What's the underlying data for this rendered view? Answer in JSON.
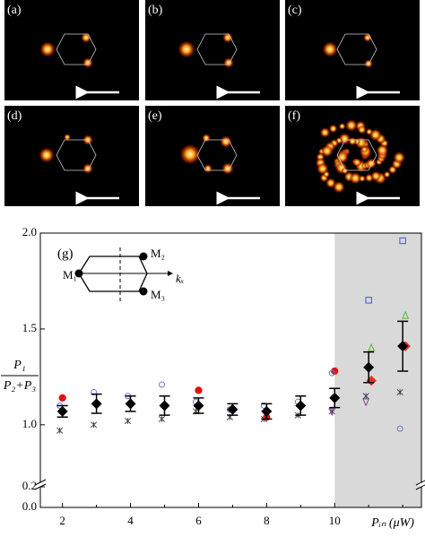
{
  "panels": [
    {
      "label": "(a)"
    },
    {
      "label": "(b)"
    },
    {
      "label": "(c)"
    },
    {
      "label": "(d)"
    },
    {
      "label": "(e)"
    },
    {
      "label": "(f)"
    }
  ],
  "chart_data": {
    "type": "scatter",
    "label": "(g)",
    "y_label": {
      "numerator": "P₁",
      "denominator": "P₂+P₃"
    },
    "x_label": "Pᵢₙ (μW)",
    "inset": {
      "labels": [
        "M₁",
        "M₂",
        "M₃",
        "kₓ"
      ]
    },
    "x": [
      2,
      3,
      4,
      5,
      6,
      7,
      8,
      9,
      10,
      11,
      12
    ],
    "xlim": [
      1.35,
      12.55
    ],
    "xticks": [
      2,
      4,
      6,
      8,
      10
    ],
    "ylim": [
      0,
      2.0
    ],
    "y_break": [
      0.2,
      0.7
    ],
    "yticks": [
      {
        "value": 0,
        "label": "0.0"
      },
      0.2,
      {
        "value": 1,
        "label": "1.0"
      },
      1.5,
      {
        "value": 2,
        "label": "2.0"
      }
    ],
    "shaded_from": 10,
    "shade_color": "#d9d9d9",
    "mean": {
      "color": "#000",
      "values": [
        1.07,
        1.11,
        1.11,
        1.1,
        1.1,
        1.08,
        1.07,
        1.1,
        1.14,
        1.3,
        1.41
      ],
      "errors": [
        0.03,
        0.05,
        0.04,
        0.05,
        0.04,
        0.03,
        0.04,
        0.05,
        0.05,
        0.08,
        0.13
      ]
    },
    "series": [
      {
        "marker": "star",
        "color": "#444",
        "values": [
          0.97,
          1.0,
          1.02,
          1.03,
          1.07,
          1.04,
          1.03,
          1.05,
          1.07,
          1.15,
          1.17
        ]
      },
      {
        "marker": "filled-circle",
        "color": "#e01010",
        "values": [
          1.14,
          null,
          null,
          null,
          1.18,
          null,
          1.04,
          null,
          1.28,
          null,
          null
        ]
      },
      {
        "marker": "filled-diamond",
        "color": "#e03020",
        "values": [
          null,
          null,
          null,
          null,
          null,
          null,
          null,
          null,
          null,
          1.23,
          1.41
        ]
      },
      {
        "marker": "circle",
        "color": "#6677cc",
        "values": [
          1.1,
          1.17,
          1.15,
          1.21,
          1.12,
          1.08,
          1.1,
          1.12,
          1.27,
          null,
          0.98
        ]
      },
      {
        "marker": "square",
        "color": "#4455bb",
        "values": [
          null,
          null,
          null,
          null,
          null,
          null,
          null,
          null,
          null,
          1.65,
          1.96
        ]
      },
      {
        "marker": "triangle",
        "color": "#55bb33",
        "values": [
          null,
          null,
          null,
          null,
          null,
          null,
          null,
          null,
          null,
          1.4,
          1.57
        ]
      },
      {
        "marker": "triangle-down",
        "color": "#8844aa",
        "values": [
          null,
          null,
          null,
          null,
          null,
          null,
          null,
          null,
          1.07,
          1.12,
          null
        ]
      }
    ]
  }
}
